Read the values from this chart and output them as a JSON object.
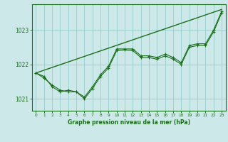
{
  "title": "Graphe pression niveau de la mer (hPa)",
  "bg_color": "#cce8e8",
  "grid_color": "#99cccc",
  "line_color": "#1a6e1a",
  "text_color": "#1a6e1a",
  "xlim": [
    -0.5,
    23.5
  ],
  "ylim": [
    1020.65,
    1023.75
  ],
  "yticks": [
    1021,
    1022,
    1023
  ],
  "xticks": [
    0,
    1,
    2,
    3,
    4,
    5,
    6,
    7,
    8,
    9,
    10,
    11,
    12,
    13,
    14,
    15,
    16,
    17,
    18,
    19,
    20,
    21,
    22,
    23
  ],
  "series1_x": [
    0,
    1,
    2,
    3,
    4,
    5,
    6,
    7,
    8,
    9,
    10,
    11,
    12,
    13,
    14,
    15,
    16,
    17,
    18,
    19,
    20,
    21,
    22,
    23
  ],
  "series1_y": [
    1021.75,
    1021.65,
    1021.35,
    1021.2,
    1021.25,
    1021.2,
    1021.05,
    1021.35,
    1021.7,
    1021.95,
    1022.45,
    1022.45,
    1022.45,
    1022.25,
    1022.25,
    1022.2,
    1022.3,
    1022.2,
    1022.05,
    1022.55,
    1022.6,
    1022.6,
    1023.0,
    1023.55
  ],
  "series2_x": [
    0,
    1,
    2,
    3,
    4,
    5,
    6,
    7,
    8,
    9,
    10,
    11,
    12,
    13,
    14,
    15,
    16,
    17,
    18,
    19,
    20,
    21,
    22,
    23
  ],
  "series2_y": [
    1021.75,
    1021.6,
    1021.4,
    1021.25,
    1021.2,
    1021.2,
    1021.0,
    1021.3,
    1021.65,
    1021.9,
    1022.4,
    1022.42,
    1022.4,
    1022.2,
    1022.2,
    1022.15,
    1022.25,
    1022.15,
    1022.0,
    1022.5,
    1022.55,
    1022.55,
    1022.95,
    1023.5
  ],
  "series3_x": [
    0,
    23
  ],
  "series3_y": [
    1021.75,
    1023.6
  ]
}
